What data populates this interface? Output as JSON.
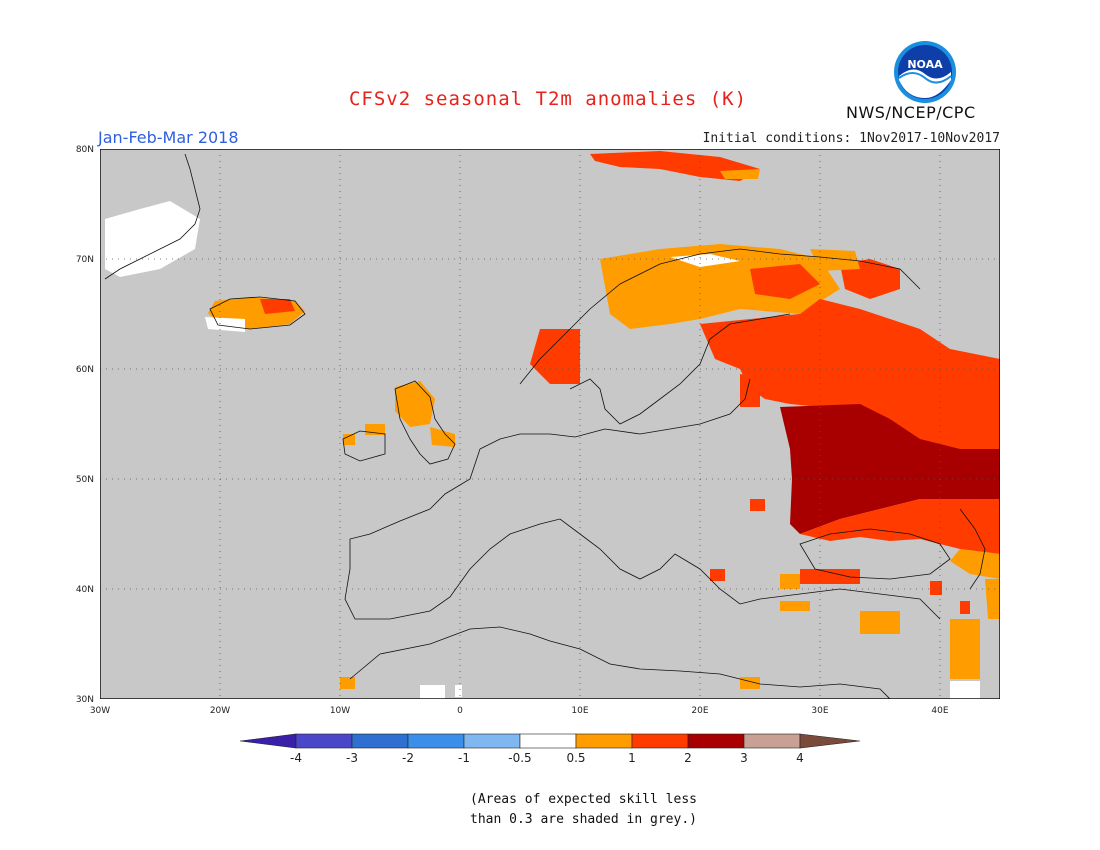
{
  "header": {
    "title": "CFSv2 seasonal T2m anomalies (K)",
    "period": "Jan-Feb-Mar 2018",
    "initial_conditions": "Initial conditions: 1Nov2017-10Nov2017",
    "agency": "NWS/NCEP/CPC",
    "logo_text": "NOAA"
  },
  "map": {
    "projection": "lat-lon",
    "lon_range": [
      -30,
      45
    ],
    "lat_range": [
      30,
      80
    ],
    "lat_labels": [
      "30N",
      "40N",
      "50N",
      "60N",
      "70N",
      "80N"
    ],
    "lon_labels": [
      "30W",
      "20W",
      "10W",
      "0",
      "10E",
      "20E",
      "30E",
      "40E"
    ],
    "grey_shading": "low skill"
  },
  "colorbar": {
    "labels": [
      "-4",
      "-3",
      "-2",
      "-1",
      "-0.5",
      "0.5",
      "1",
      "2",
      "3",
      "4"
    ],
    "colors": [
      "#3a1fa8",
      "#4a48c8",
      "#2f6fd0",
      "#3c8fe8",
      "#7fb8f0",
      "#ffffff",
      "#ff9d00",
      "#ff3b00",
      "#a80000",
      "#c8a094",
      "#7a4a3a"
    ]
  },
  "legend_colors": {
    "0.5-1": "#ff9d00",
    "1-2": "#ff3b00",
    "2-3": "#a80000",
    "grey": "#c8c8c8"
  },
  "footer": {
    "line1": "(Areas of expected skill less",
    "line2": "than 0.3 are shaded in grey.)"
  }
}
